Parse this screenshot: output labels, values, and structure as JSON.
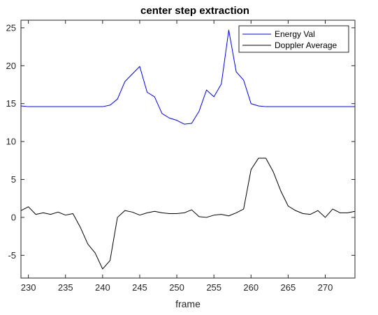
{
  "chart_data": {
    "type": "line",
    "title": "center step extraction",
    "xlabel": "frame",
    "ylabel": "",
    "xlim": [
      229,
      274
    ],
    "ylim": [
      -8,
      26
    ],
    "xticks": [
      230,
      235,
      240,
      245,
      250,
      255,
      260,
      265,
      270
    ],
    "yticks": [
      -5,
      0,
      5,
      10,
      15,
      20,
      25
    ],
    "grid": false,
    "legend_position": "top-right",
    "series": [
      {
        "name": "Energy Val",
        "color": "#0000ff",
        "x": [
          229,
          230,
          231,
          232,
          233,
          234,
          235,
          236,
          237,
          238,
          239,
          240,
          241,
          242,
          243,
          244,
          245,
          246,
          247,
          248,
          249,
          250,
          251,
          252,
          253,
          254,
          255,
          256,
          257,
          258,
          259,
          260,
          261,
          262,
          263,
          264,
          265,
          266,
          267,
          268,
          269,
          270,
          271,
          272,
          273,
          274
        ],
        "y": [
          14.7,
          14.6,
          14.6,
          14.6,
          14.6,
          14.6,
          14.6,
          14.6,
          14.6,
          14.6,
          14.6,
          14.6,
          14.8,
          15.6,
          17.9,
          18.9,
          19.9,
          16.5,
          15.9,
          13.7,
          13.1,
          12.8,
          12.3,
          12.4,
          14.0,
          16.8,
          15.9,
          17.6,
          24.7,
          19.2,
          18.1,
          15.0,
          14.7,
          14.6,
          14.6,
          14.6,
          14.6,
          14.6,
          14.6,
          14.6,
          14.6,
          14.6,
          14.6,
          14.6,
          14.6,
          14.6
        ]
      },
      {
        "name": "Doppler Average",
        "color": "#000000",
        "x": [
          229,
          230,
          231,
          232,
          233,
          234,
          235,
          236,
          237,
          238,
          239,
          240,
          241,
          242,
          243,
          244,
          245,
          246,
          247,
          248,
          249,
          250,
          251,
          252,
          253,
          254,
          255,
          256,
          257,
          258,
          259,
          260,
          261,
          262,
          263,
          264,
          265,
          266,
          267,
          268,
          269,
          270,
          271,
          272,
          273,
          274
        ],
        "y": [
          0.9,
          1.4,
          0.4,
          0.6,
          0.4,
          0.7,
          0.3,
          0.5,
          -1.3,
          -3.5,
          -4.7,
          -6.8,
          -5.7,
          0.0,
          0.9,
          0.7,
          0.3,
          0.6,
          0.8,
          0.6,
          0.5,
          0.5,
          0.6,
          1.0,
          0.1,
          0.0,
          0.3,
          0.4,
          0.2,
          0.6,
          1.1,
          6.3,
          7.8,
          7.8,
          6.0,
          3.5,
          1.5,
          0.9,
          0.5,
          0.4,
          0.9,
          0.0,
          1.1,
          0.6,
          0.6,
          0.8
        ]
      }
    ]
  }
}
